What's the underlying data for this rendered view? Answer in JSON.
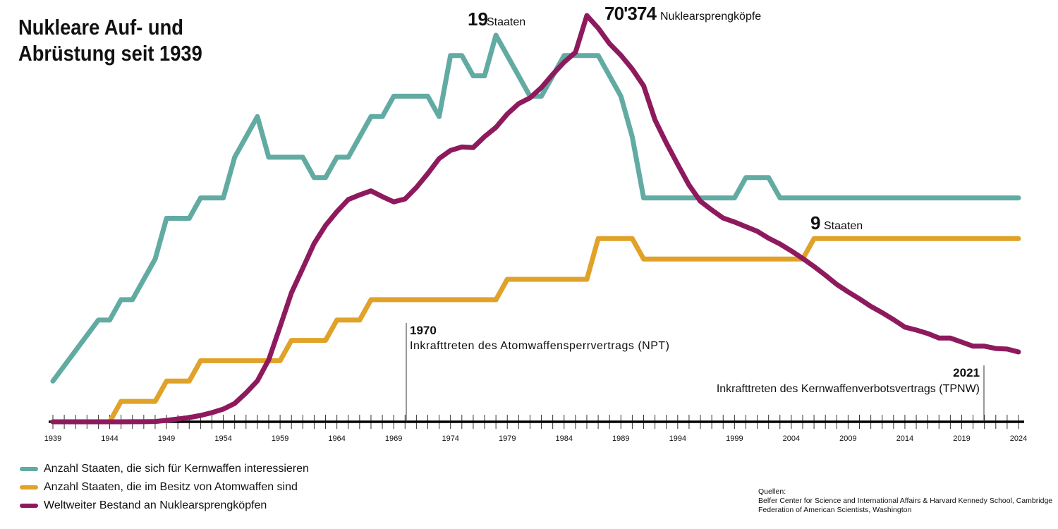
{
  "title": "Nukleare Auf- und\nAbrüstung seit 1939",
  "chart_data": {
    "type": "line",
    "title": "Nukleare Auf- und Abrüstung seit 1939",
    "xlim": [
      1939,
      2024
    ],
    "x_tick_labels": [
      "1939",
      "1944",
      "1949",
      "1954",
      "1959",
      "1964",
      "1969",
      "1974",
      "1979",
      "1984",
      "1989",
      "1994",
      "1999",
      "2004",
      "2009",
      "2014",
      "2019",
      "2024"
    ],
    "grid": false,
    "legend_placement": "bottom-left",
    "series": [
      {
        "name": "Anzahl Staaten, die sich für Kernwaffen interessieren",
        "color": "#62aba3",
        "axis": "states",
        "points": [
          [
            1939,
            2
          ],
          [
            1943,
            5
          ],
          [
            1944,
            5
          ],
          [
            1945,
            6
          ],
          [
            1946,
            6
          ],
          [
            1948,
            8
          ],
          [
            1949,
            10
          ],
          [
            1951,
            10
          ],
          [
            1952,
            11
          ],
          [
            1954,
            11
          ],
          [
            1955,
            13
          ],
          [
            1957,
            15
          ],
          [
            1958,
            13
          ],
          [
            1961,
            13
          ],
          [
            1962,
            12
          ],
          [
            1963,
            12
          ],
          [
            1964,
            13
          ],
          [
            1965,
            13
          ],
          [
            1967,
            15
          ],
          [
            1968,
            15
          ],
          [
            1969,
            16
          ],
          [
            1972,
            16
          ],
          [
            1973,
            15
          ],
          [
            1974,
            18
          ],
          [
            1975,
            18
          ],
          [
            1976,
            17
          ],
          [
            1977,
            17
          ],
          [
            1978,
            19
          ],
          [
            1981,
            16
          ],
          [
            1982,
            16
          ],
          [
            1984,
            18
          ],
          [
            1987,
            18
          ],
          [
            1989,
            16
          ],
          [
            1990,
            14
          ],
          [
            1991,
            11
          ],
          [
            1999,
            11
          ],
          [
            2000,
            12
          ],
          [
            2002,
            12
          ],
          [
            2003,
            11
          ],
          [
            2024,
            11
          ]
        ]
      },
      {
        "name": "Anzahl Staaten, die im Besitz von Atomwaffen sind",
        "color": "#e0a228",
        "axis": "states",
        "points": [
          [
            1939,
            0
          ],
          [
            1944,
            0
          ],
          [
            1945,
            1
          ],
          [
            1948,
            1
          ],
          [
            1949,
            2
          ],
          [
            1951,
            2
          ],
          [
            1952,
            3
          ],
          [
            1959,
            3
          ],
          [
            1960,
            4
          ],
          [
            1963,
            4
          ],
          [
            1964,
            5
          ],
          [
            1966,
            5
          ],
          [
            1967,
            6
          ],
          [
            1978,
            6
          ],
          [
            1979,
            7
          ],
          [
            1986,
            7
          ],
          [
            1987,
            9
          ],
          [
            1990,
            9
          ],
          [
            1991,
            8
          ],
          [
            2005,
            8
          ],
          [
            2006,
            9
          ],
          [
            2024,
            9
          ]
        ]
      },
      {
        "name": "Weltweiter Bestand an Nuklearsprengköpfen",
        "color": "#8e1a5e",
        "axis": "warheads",
        "points": [
          [
            1939,
            0
          ],
          [
            1945,
            2
          ],
          [
            1946,
            9
          ],
          [
            1947,
            13
          ],
          [
            1948,
            50
          ],
          [
            1949,
            245
          ],
          [
            1950,
            490
          ],
          [
            1951,
            730
          ],
          [
            1952,
            1100
          ],
          [
            1953,
            1590
          ],
          [
            1954,
            2200
          ],
          [
            1955,
            3180
          ],
          [
            1956,
            5000
          ],
          [
            1957,
            7090
          ],
          [
            1958,
            10750
          ],
          [
            1959,
            16500
          ],
          [
            1960,
            22350
          ],
          [
            1961,
            26600
          ],
          [
            1962,
            30900
          ],
          [
            1963,
            34000
          ],
          [
            1964,
            36400
          ],
          [
            1965,
            38500
          ],
          [
            1966,
            39300
          ],
          [
            1967,
            40000
          ],
          [
            1968,
            39000
          ],
          [
            1969,
            38100
          ],
          [
            1970,
            38600
          ],
          [
            1971,
            40600
          ],
          [
            1972,
            43000
          ],
          [
            1973,
            45600
          ],
          [
            1974,
            47000
          ],
          [
            1975,
            47600
          ],
          [
            1976,
            47500
          ],
          [
            1977,
            49400
          ],
          [
            1978,
            51000
          ],
          [
            1979,
            53300
          ],
          [
            1980,
            55100
          ],
          [
            1981,
            56100
          ],
          [
            1982,
            57900
          ],
          [
            1983,
            60200
          ],
          [
            1984,
            62300
          ],
          [
            1985,
            64000
          ],
          [
            1986,
            70374
          ],
          [
            1987,
            68200
          ],
          [
            1988,
            65500
          ],
          [
            1989,
            63500
          ],
          [
            1990,
            61100
          ],
          [
            1991,
            58200
          ],
          [
            1992,
            52300
          ],
          [
            1993,
            48300
          ],
          [
            1994,
            44600
          ],
          [
            1995,
            41000
          ],
          [
            1996,
            38200
          ],
          [
            1997,
            36700
          ],
          [
            1998,
            35300
          ],
          [
            1999,
            34600
          ],
          [
            2000,
            33800
          ],
          [
            2001,
            33000
          ],
          [
            2002,
            31800
          ],
          [
            2003,
            30800
          ],
          [
            2004,
            29600
          ],
          [
            2005,
            28300
          ],
          [
            2006,
            26900
          ],
          [
            2007,
            25400
          ],
          [
            2008,
            23800
          ],
          [
            2009,
            22500
          ],
          [
            2010,
            21300
          ],
          [
            2011,
            20000
          ],
          [
            2012,
            18900
          ],
          [
            2013,
            17700
          ],
          [
            2014,
            16400
          ],
          [
            2015,
            15900
          ],
          [
            2016,
            15300
          ],
          [
            2017,
            14500
          ],
          [
            2018,
            14500
          ],
          [
            2019,
            13800
          ],
          [
            2020,
            13100
          ],
          [
            2021,
            13100
          ],
          [
            2022,
            12700
          ],
          [
            2023,
            12600
          ],
          [
            2024,
            12100
          ]
        ]
      }
    ],
    "annotations": {
      "peak_states": {
        "value": "19",
        "unit": "Staaten"
      },
      "peak_warheads": {
        "value": "70'374",
        "unit": "Nuklearsprengköpfe"
      },
      "current_states": {
        "value": "9",
        "unit": "Staaten"
      },
      "npt": {
        "year": "1970",
        "text": "Inkrafttreten des Atomwaffensperrvertrags (NPT)"
      },
      "tpnw": {
        "year": "2021",
        "text": "Inkrafttreten des Kernwaffenverbotsvertrags (TPNW)"
      }
    }
  },
  "sources": {
    "heading": "Quellen:",
    "lines": [
      "Belfer Center for Science and International Affairs & Harvard Kennedy School, Cambridge",
      "Federation of American Scientists, Washington"
    ]
  }
}
